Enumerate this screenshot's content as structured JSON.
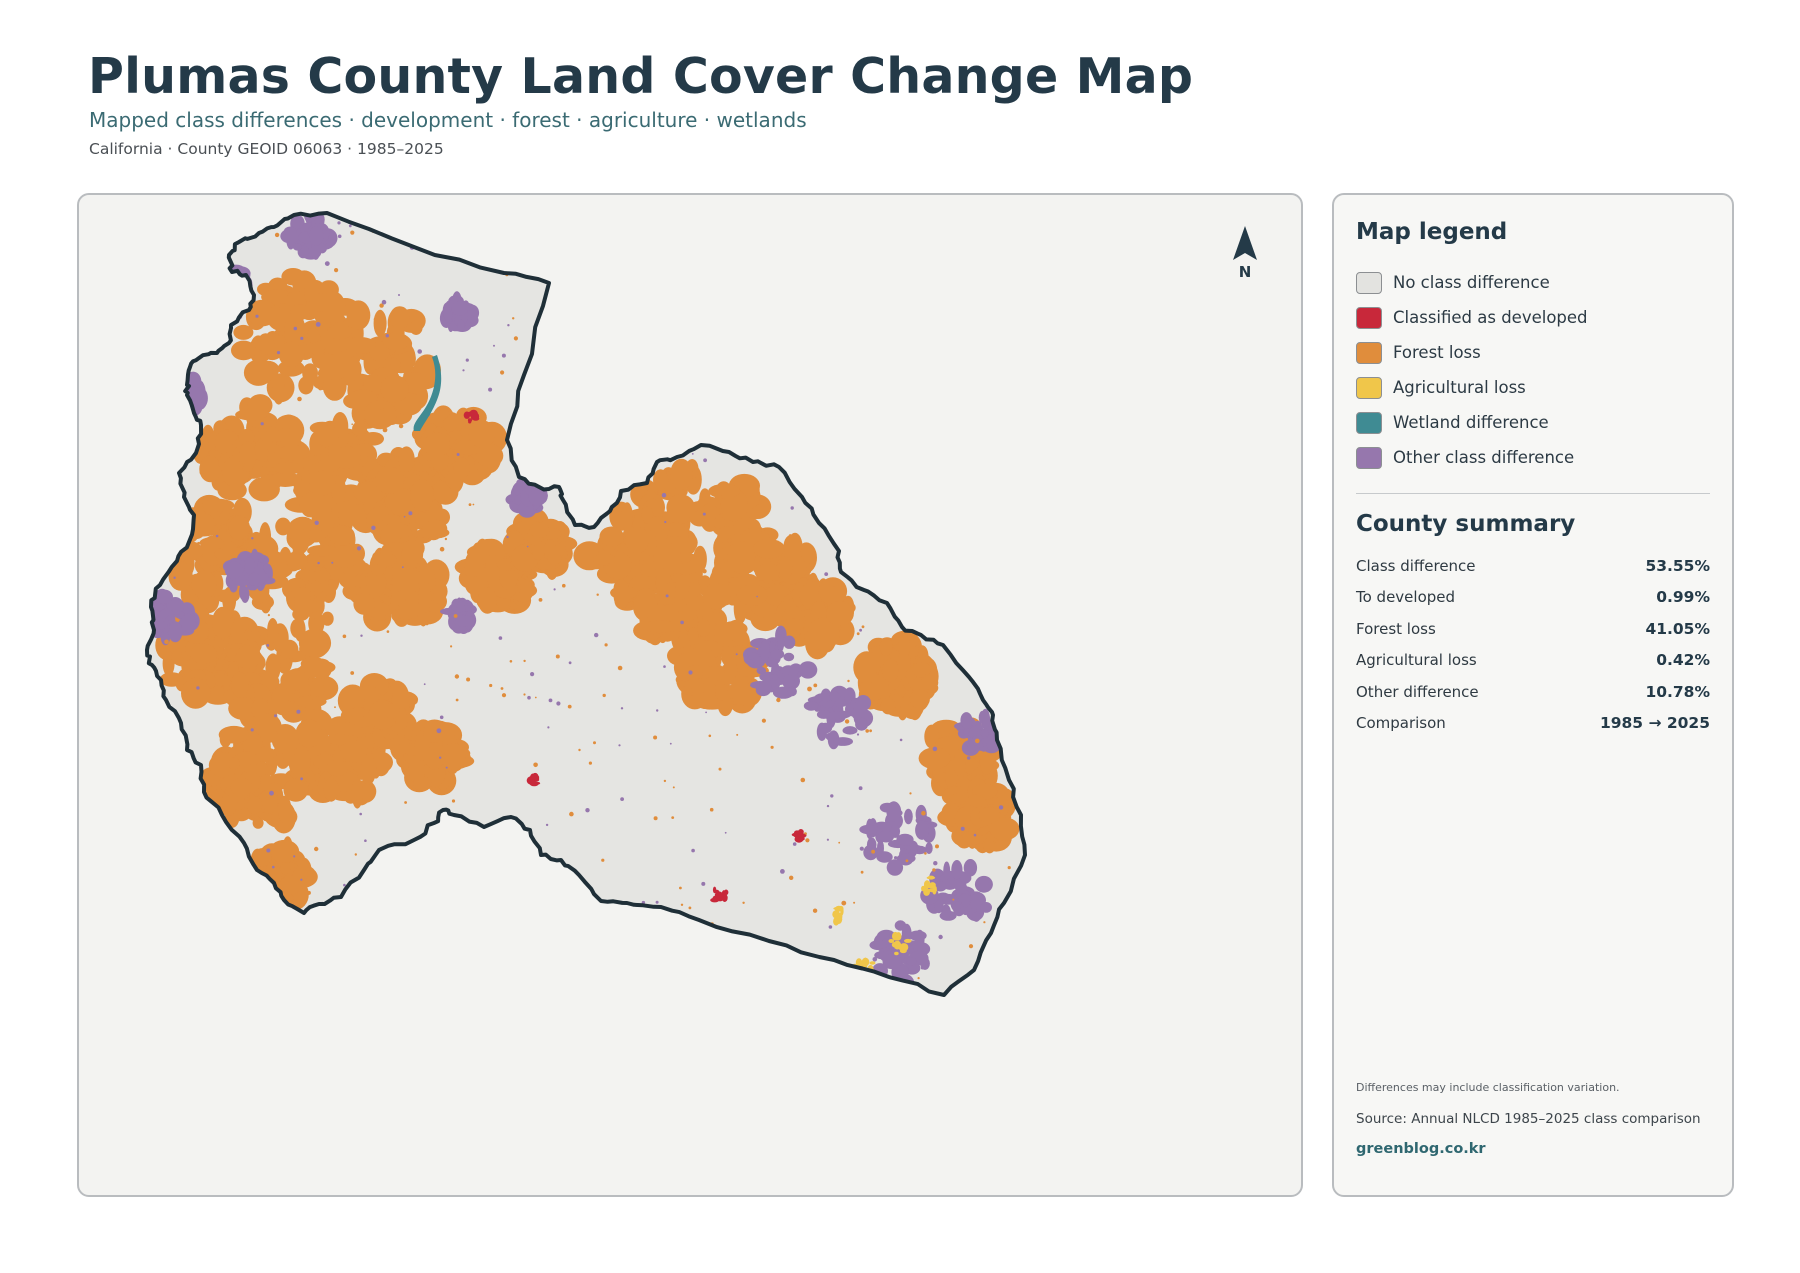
{
  "header": {
    "title": "Plumas County Land Cover Change Map",
    "subtitle": "Mapped class differences · development · forest · agriculture · wetlands",
    "meta": "California · County GEOID 06063 · 1985–2025"
  },
  "map": {
    "north_label": "N",
    "colors": {
      "none": "#e5e5e2",
      "developed": "#c8283a",
      "forest": "#e08d3c",
      "agricultural": "#f0c64a",
      "wetland": "#3f8b93",
      "other": "#9677ad",
      "outline": "#1f2f38"
    }
  },
  "legend": {
    "title": "Map legend",
    "items": [
      {
        "label": "No class difference",
        "color": "#e3e3e0"
      },
      {
        "label": "Classified as developed",
        "color": "#c8283a"
      },
      {
        "label": "Forest loss",
        "color": "#e08d3c"
      },
      {
        "label": "Agricultural loss",
        "color": "#f0c64a"
      },
      {
        "label": "Wetland difference",
        "color": "#3f8b93"
      },
      {
        "label": "Other class difference",
        "color": "#9677ad"
      }
    ]
  },
  "summary": {
    "title": "County summary",
    "rows": [
      {
        "label": "Class difference",
        "value": "53.55%"
      },
      {
        "label": "To developed",
        "value": "0.99%"
      },
      {
        "label": "Forest loss",
        "value": "41.05%"
      },
      {
        "label": "Agricultural loss",
        "value": "0.42%"
      },
      {
        "label": "Other difference",
        "value": "10.78%"
      },
      {
        "label": "Comparison",
        "value": "1985 → 2025"
      }
    ]
  },
  "footer": {
    "note": "Differences may include classification variation.",
    "source": "Source: Annual NLCD 1985–2025 class comparison",
    "site": "greenblog.co.kr"
  }
}
